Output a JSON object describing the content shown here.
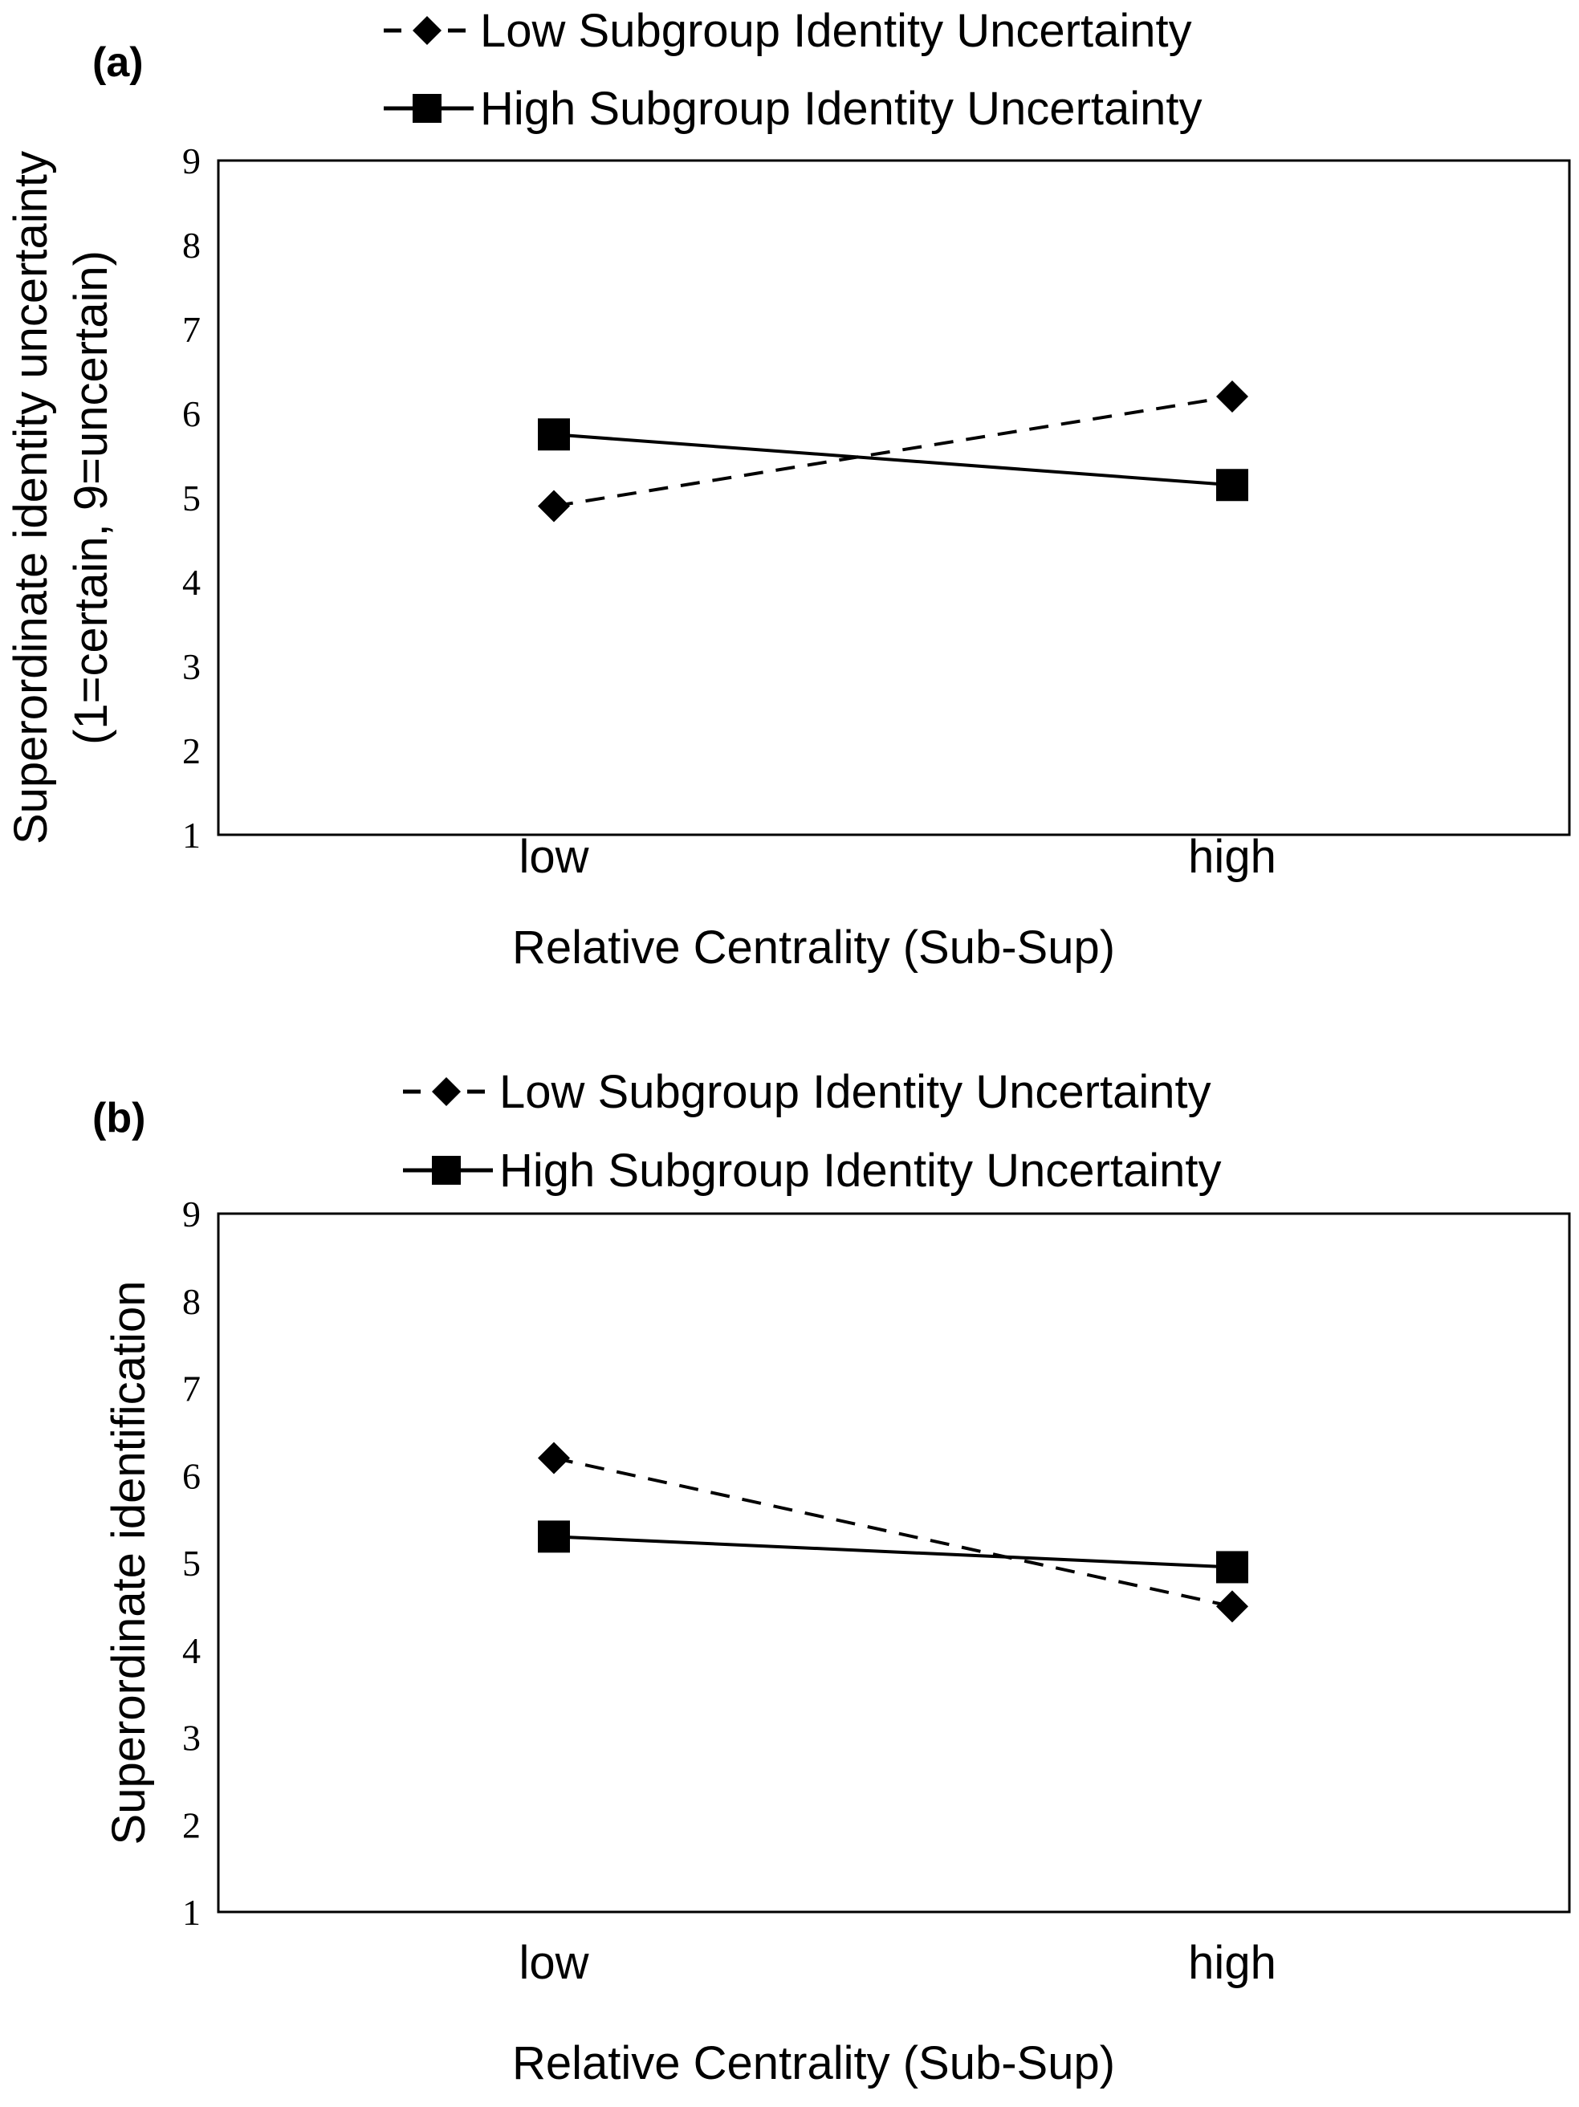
{
  "chart_data": [
    {
      "type": "line",
      "panel_label": "(a)",
      "categories": [
        "low",
        "high"
      ],
      "series": [
        {
          "name": "Low Subgroup Identity Uncertainty",
          "values": [
            4.9,
            6.2
          ],
          "line_style": "dashed",
          "marker": "diamond"
        },
        {
          "name": "High Subgroup Identity Uncertainty",
          "values": [
            5.75,
            5.15
          ],
          "line_style": "solid",
          "marker": "square"
        }
      ],
      "xlabel": "Relative Centrality (Sub-Sup)",
      "ylabel_lines": [
        "Superordinate identity uncertainty",
        "(1=certain, 9=uncertain)"
      ],
      "ylim": [
        1,
        9
      ],
      "yticks": [
        "1",
        "2",
        "3",
        "4",
        "5",
        "6",
        "7",
        "8",
        "9"
      ],
      "legend_position": "top",
      "grid": false
    },
    {
      "type": "line",
      "panel_label": "(b)",
      "categories": [
        "low",
        "high"
      ],
      "series": [
        {
          "name": "Low Subgroup Identity Uncertainty",
          "values": [
            6.2,
            4.5
          ],
          "line_style": "dashed",
          "marker": "diamond"
        },
        {
          "name": "High Subgroup Identity Uncertainty",
          "values": [
            5.3,
            4.95
          ],
          "line_style": "solid",
          "marker": "square"
        }
      ],
      "xlabel": "Relative Centrality (Sub-Sup)",
      "ylabel_lines": [
        "Superordinate identification"
      ],
      "ylim": [
        1,
        9
      ],
      "yticks": [
        "1",
        "2",
        "3",
        "4",
        "5",
        "6",
        "7",
        "8",
        "9"
      ],
      "legend_position": "top",
      "grid": false
    }
  ],
  "colors": {
    "line": "#000000",
    "background": "#ffffff"
  }
}
